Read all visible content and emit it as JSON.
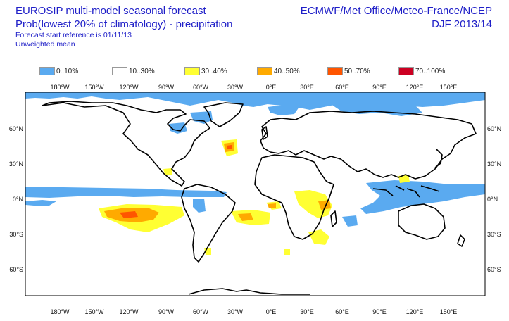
{
  "header": {
    "title_line1": "EUROSIP multi-model seasonal forecast",
    "title_line2": "Prob(lowest 20% of climatology) - precipitation",
    "forecast_ref": "Forecast start reference is 01/11/13",
    "mean_type": "Unweighted mean",
    "source": "ECMWF/Met Office/Meteo-France/NCEP",
    "season": "DJF 2013/14"
  },
  "legend": [
    {
      "label": "0..10%",
      "color": "#5aaaf0"
    },
    {
      "label": "10..30%",
      "color": "#ffffff"
    },
    {
      "label": "30..40%",
      "color": "#ffff33"
    },
    {
      "label": "40..50%",
      "color": "#ffaa00"
    },
    {
      "label": "50..70%",
      "color": "#ff5500"
    },
    {
      "label": "70..100%",
      "color": "#cc0022"
    }
  ],
  "map": {
    "lon_labels": [
      "180°W",
      "150°W",
      "120°W",
      "90°W",
      "60°W",
      "30°W",
      "0°E",
      "30°E",
      "60°E",
      "90°E",
      "120°E",
      "150°E"
    ],
    "lat_labels": [
      "60°N",
      "30°N",
      "0°N",
      "30°S",
      "60°S"
    ]
  }
}
